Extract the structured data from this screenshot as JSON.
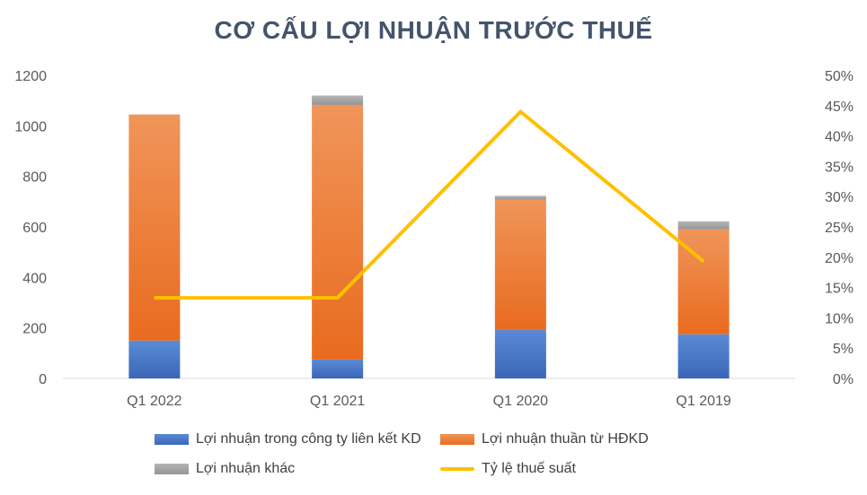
{
  "chart_data": {
    "type": "bar",
    "stacked": true,
    "title": "CƠ CẤU LỢI NHUẬN TRƯỚC THUẾ",
    "categories": [
      "Q1 2022",
      "Q1 2021",
      "Q1 2020",
      "Q1 2019"
    ],
    "ylim": [
      0,
      1200
    ],
    "yticks": [
      "0",
      "200",
      "400",
      "600",
      "800",
      "1000",
      "1200"
    ],
    "y2lim": [
      0,
      0.5
    ],
    "y2ticks": [
      "0%",
      "5%",
      "10%",
      "15%",
      "20%",
      "25%",
      "30%",
      "35%",
      "40%",
      "45%",
      "50%"
    ],
    "series": [
      {
        "name": "Lợi nhuận trong công ty liên kết KD",
        "type": "bar",
        "axis": "left",
        "color": "#4472C4",
        "values": [
          150,
          75,
          195,
          175
        ]
      },
      {
        "name": "Lợi nhuận thuần từ HĐKD",
        "type": "bar",
        "axis": "left",
        "color": "#ED7D31",
        "values": [
          895,
          1008,
          512,
          415
        ]
      },
      {
        "name": "Lợi nhuận khác",
        "type": "bar",
        "axis": "left",
        "color": "#A5A5A5",
        "values": [
          0,
          37,
          16,
          32
        ]
      },
      {
        "name": "Tỷ lệ thuế suất",
        "type": "line",
        "axis": "right",
        "color": "#FFC000",
        "values": [
          0.133,
          0.133,
          0.44,
          0.193
        ]
      }
    ],
    "grid": false,
    "legend_position": "bottom"
  }
}
